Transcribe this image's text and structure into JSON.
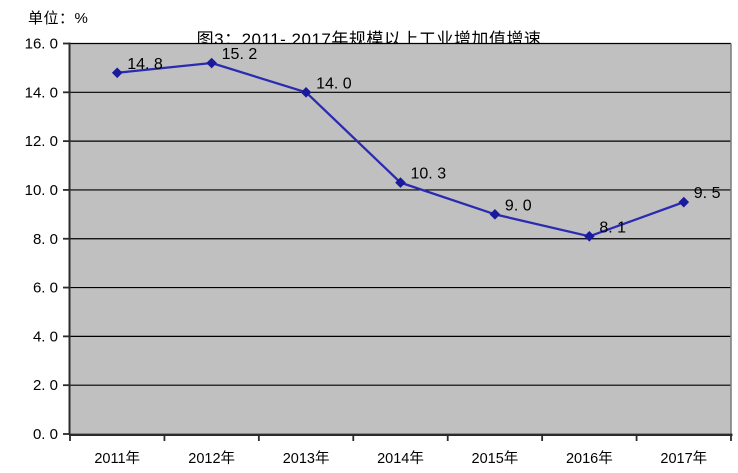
{
  "window": {
    "background": "#ffffff"
  },
  "chart": {
    "unit_label": "单位：%",
    "title": "图3：2011- 2017年规模以上工业增加值增速"
  },
  "chart_data": {
    "type": "line",
    "title": "图3：2011- 2017年规模以上工业增加值增速",
    "unit": "%",
    "categories": [
      "2011年",
      "2012年",
      "2013年",
      "2014年",
      "2015年",
      "2016年",
      "2017年"
    ],
    "values": [
      14.8,
      15.2,
      14.0,
      10.3,
      9.0,
      8.1,
      9.5
    ],
    "point_labels": [
      "14. 8",
      "15. 2",
      "14. 0",
      "10. 3",
      "9. 0",
      "8. 1",
      "9. 5"
    ],
    "ylim": [
      0,
      16
    ],
    "ytick_step": 2,
    "ytick_labels": [
      "0. 0",
      "2. 0",
      "4. 0",
      "6. 0",
      "8. 0",
      "10. 0",
      "12. 0",
      "14. 0",
      "16. 0"
    ],
    "xlabel": "",
    "ylabel": "",
    "grid": "horizontal",
    "legend_position": "none",
    "marker_style": "diamond",
    "colors": {
      "plot_background": "#c0c0c0",
      "line": "#2b2bb2",
      "marker": "#1a1a9c",
      "gridline": "#000000",
      "axis": "#2b2b2b",
      "plot_border_right": "#7a7a7a",
      "text": "#000000"
    }
  }
}
